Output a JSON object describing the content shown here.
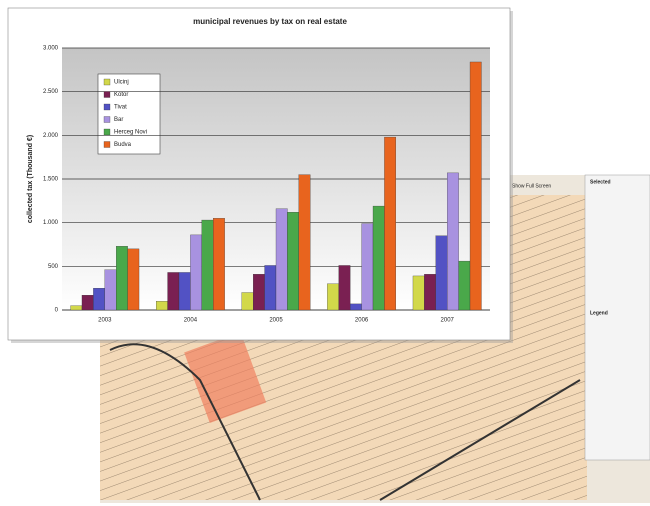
{
  "chart_data": {
    "type": "bar",
    "title": "municipal revenues by tax on real estate",
    "y_label": "collected tax (Thousand €)",
    "categories": [
      "2003",
      "2004",
      "2005",
      "2006",
      "2007"
    ],
    "series": [
      {
        "name": "Ulcinj",
        "color": "#d2d84a",
        "values": [
          50,
          100,
          200,
          300,
          390
        ]
      },
      {
        "name": "Kotor",
        "color": "#7a2052",
        "values": [
          170,
          430,
          410,
          510,
          410
        ]
      },
      {
        "name": "Tivat",
        "color": "#5252c4",
        "values": [
          250,
          430,
          510,
          70,
          850
        ]
      },
      {
        "name": "Bar",
        "color": "#a892e0",
        "values": [
          460,
          860,
          1160,
          990,
          1570
        ]
      },
      {
        "name": "Herceg Novi",
        "color": "#4aa84a",
        "values": [
          730,
          1030,
          1120,
          1190,
          560
        ]
      },
      {
        "name": "Budva",
        "color": "#e8641e",
        "values": [
          700,
          1050,
          1550,
          1980,
          2840
        ]
      }
    ],
    "ylim": [
      0,
      3000
    ],
    "yticks": [
      0,
      500,
      {
        "value": 1000,
        "label": "1.000"
      },
      {
        "value": 1500,
        "label": "1.500"
      },
      {
        "value": 2000,
        "label": "2.000"
      },
      {
        "value": 2500,
        "label": "2.500"
      },
      {
        "value": 3000,
        "label": "3.000"
      }
    ],
    "grid": true
  },
  "map_panel": {
    "show_full_screen": "Show Full Screen",
    "selected_title": "Selected",
    "legend_title": "Legend"
  }
}
